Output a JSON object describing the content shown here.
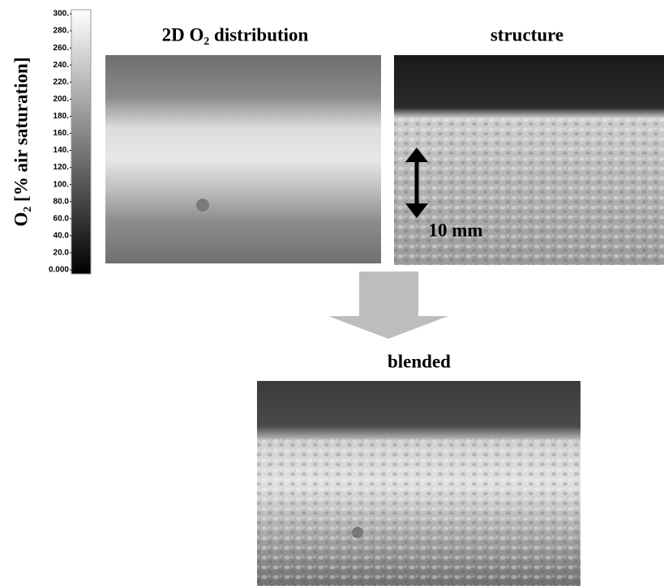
{
  "colorbar": {
    "label": "O₂ [% air saturation]",
    "ticks": [
      {
        "value": 300,
        "label": "300."
      },
      {
        "value": 280,
        "label": "280."
      },
      {
        "value": 260,
        "label": "260."
      },
      {
        "value": 240,
        "label": "240."
      },
      {
        "value": 220,
        "label": "220."
      },
      {
        "value": 200,
        "label": "200."
      },
      {
        "value": 180,
        "label": "180."
      },
      {
        "value": 160,
        "label": "160."
      },
      {
        "value": 140,
        "label": "140."
      },
      {
        "value": 120,
        "label": "120."
      },
      {
        "value": 100,
        "label": "100."
      },
      {
        "value": 80,
        "label": "80.0"
      },
      {
        "value": 60,
        "label": "60.0"
      },
      {
        "value": 40,
        "label": "40.0"
      },
      {
        "value": 20,
        "label": "20.0"
      },
      {
        "value": 0,
        "label": "0.000"
      }
    ]
  },
  "panels": {
    "distribution": {
      "title": "2D O₂ distribution"
    },
    "structure": {
      "title": "structure",
      "scale_label": "10 mm"
    },
    "blended": {
      "title": "blended"
    }
  }
}
